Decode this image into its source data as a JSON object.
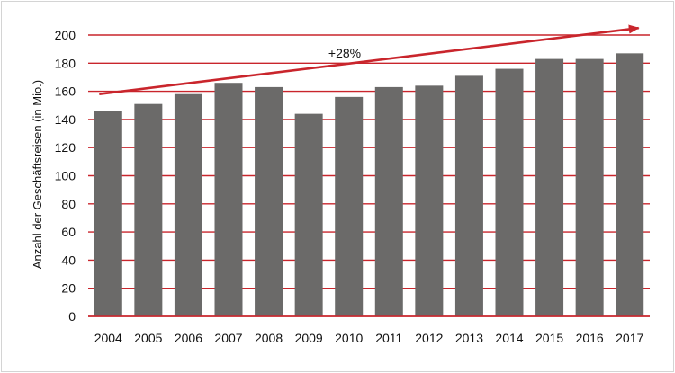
{
  "chart_data": {
    "type": "bar",
    "title": "",
    "xlabel": "",
    "ylabel": "Anzahl der Geschäftsreisen (in Mio.)",
    "categories": [
      "2004",
      "2005",
      "2006",
      "2007",
      "2008",
      "2009",
      "2010",
      "2011",
      "2012",
      "2013",
      "2014",
      "2015",
      "2016",
      "2017"
    ],
    "values": [
      146,
      151,
      158,
      166,
      163,
      144,
      156,
      163,
      164,
      171,
      176,
      183,
      183,
      187
    ],
    "ylim": [
      0,
      200
    ],
    "yticks": [
      0,
      20,
      40,
      60,
      80,
      100,
      120,
      140,
      160,
      180,
      200
    ],
    "grid": true,
    "colors": {
      "bar": "#6b6a69",
      "grid": "#c9252c",
      "arrow": "#c9252c"
    },
    "annotation": {
      "text": "+28%",
      "arrow_from": {
        "x": "2004",
        "y": 158
      },
      "arrow_to": {
        "x": "2017",
        "y": 205
      }
    }
  }
}
